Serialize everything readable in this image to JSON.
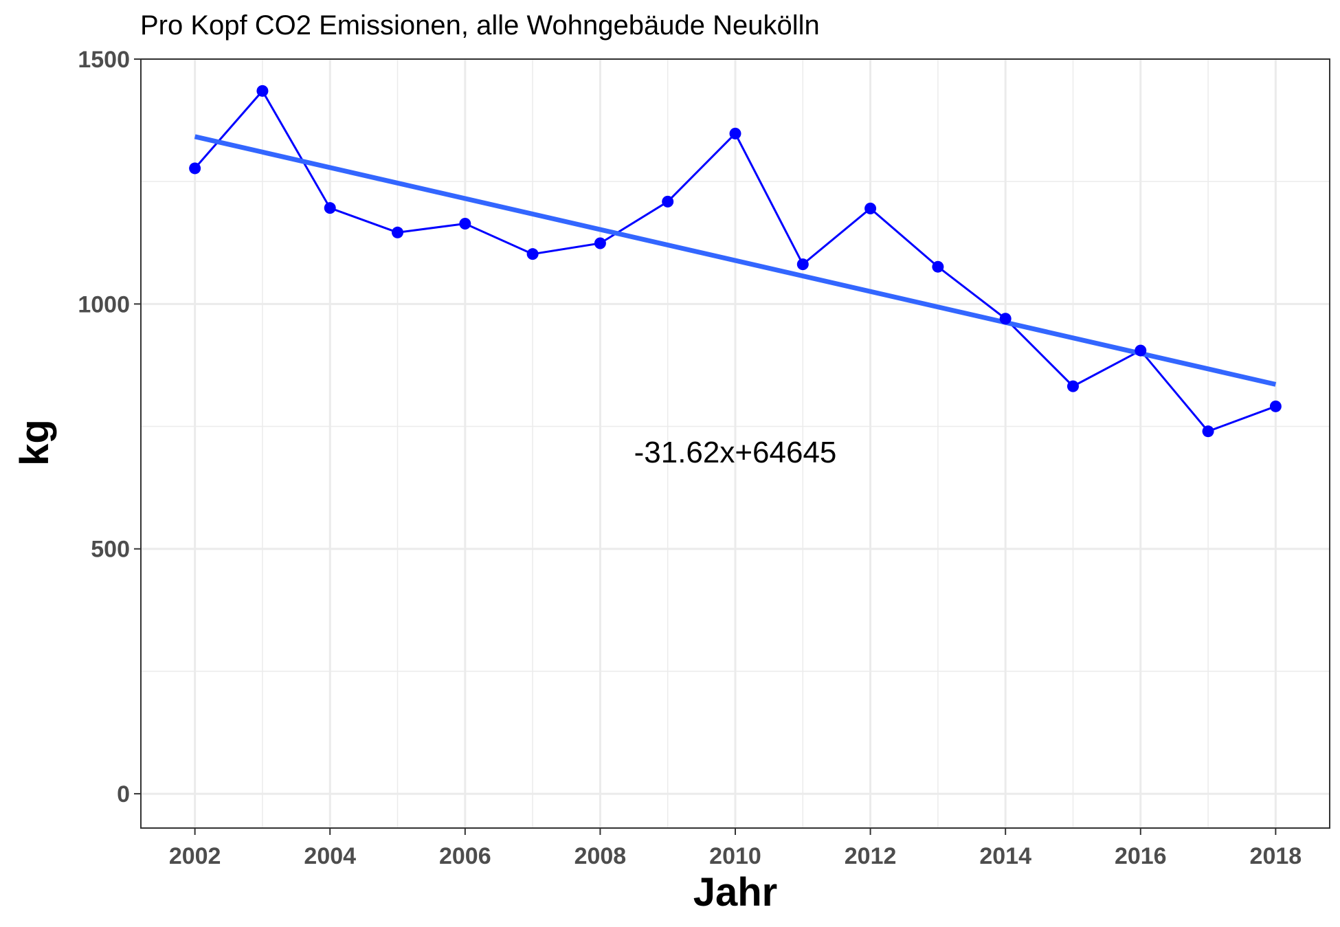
{
  "chart_data": {
    "type": "line",
    "title": "Pro Kopf CO2 Emissionen, alle Wohngebäude Neukölln",
    "xlabel": "Jahr",
    "ylabel": "kg",
    "x": [
      2002,
      2003,
      2004,
      2005,
      2006,
      2007,
      2008,
      2009,
      2010,
      2011,
      2012,
      2013,
      2014,
      2015,
      2016,
      2017,
      2018
    ],
    "series": [
      {
        "values": [
          1277,
          1435,
          1196,
          1146,
          1164,
          1102,
          1124,
          1209,
          1348,
          1081,
          1195,
          1076,
          970,
          832,
          905,
          740,
          791
        ],
        "color": "#0000ff"
      }
    ],
    "trendline": {
      "slope": -31.62,
      "intercept": 64645,
      "color": "#3366ff",
      "label": "-31.62x+64645"
    },
    "xlim": [
      2001.2,
      2018.8
    ],
    "ylim": [
      -70,
      1500
    ],
    "x_ticks": [
      "2002",
      "2004",
      "2006",
      "2008",
      "2010",
      "2012",
      "2014",
      "2016",
      "2018"
    ],
    "y_ticks": [
      "0",
      "500",
      "1000",
      "1500"
    ],
    "grid": true,
    "legend": "none"
  }
}
